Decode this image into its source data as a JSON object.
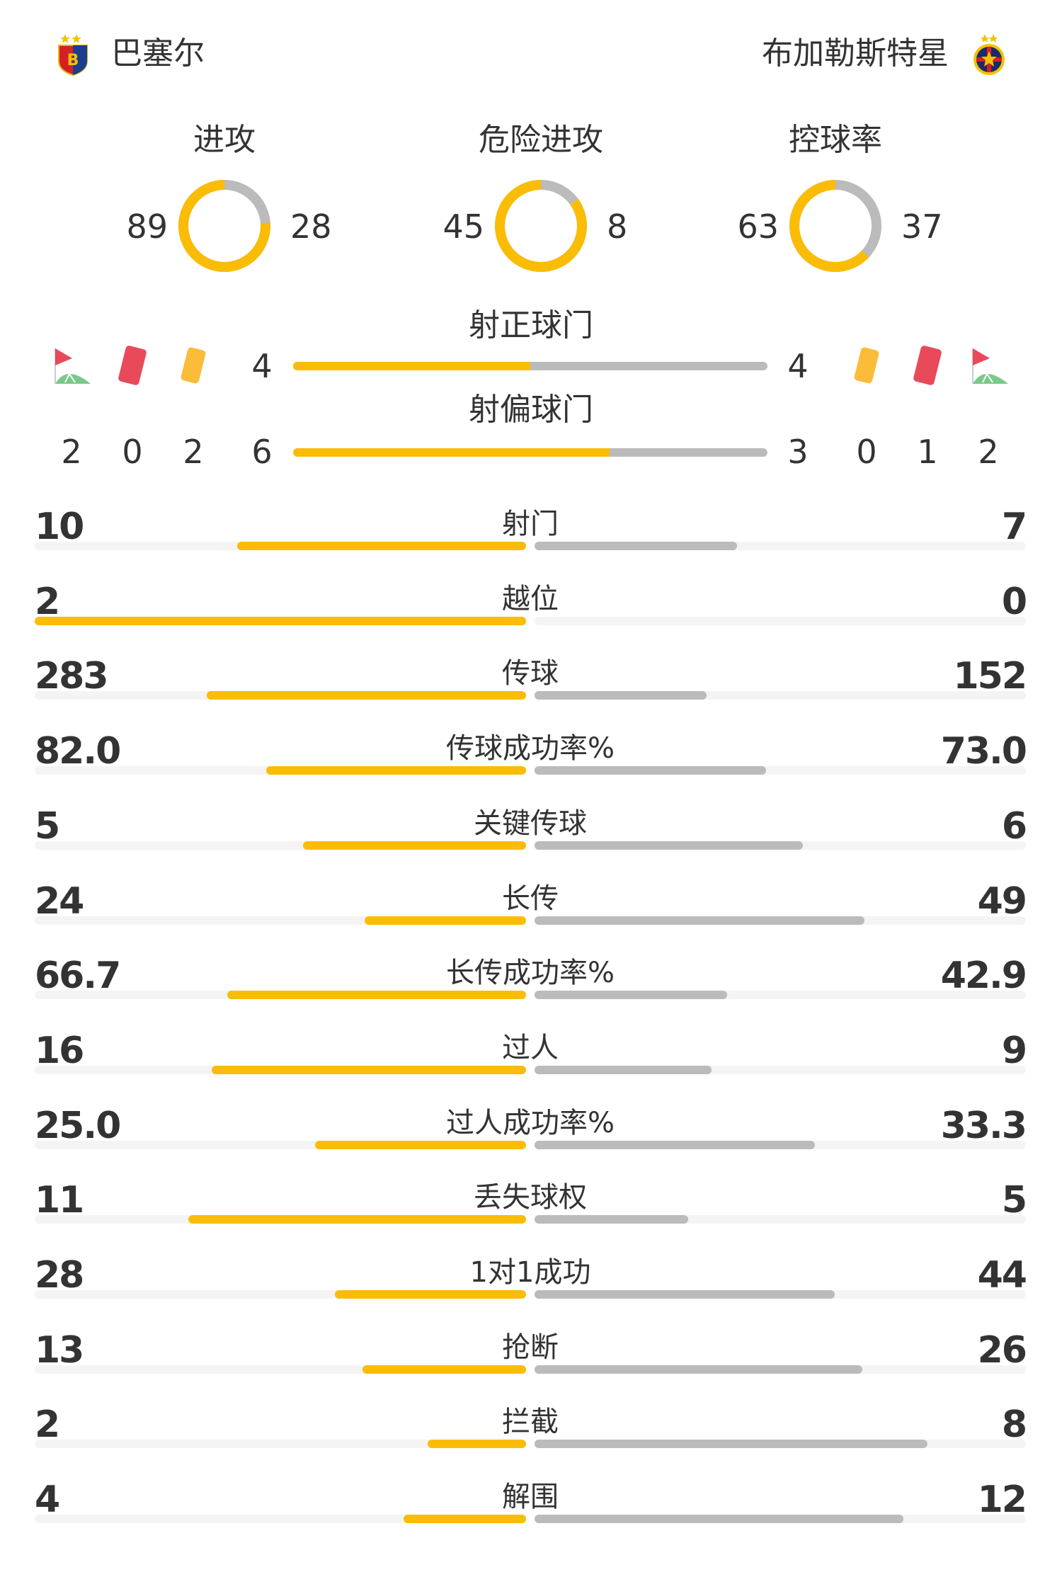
{
  "colors": {
    "home": "#fbbc05",
    "away": "#bbbbbb",
    "track": "#f4f4f4",
    "text": "#333333"
  },
  "header": {
    "home": {
      "name": "巴塞尔",
      "logo": "fc-basel-crest"
    },
    "away": {
      "name": "布加勒斯特星",
      "logo": "fcsb-crest"
    }
  },
  "donuts": [
    {
      "label": "进攻",
      "home": 89,
      "away": 28
    },
    {
      "label": "危险进攻",
      "home": 45,
      "away": 8
    },
    {
      "label": "控球率",
      "home": 63,
      "away": 37
    }
  ],
  "shots": {
    "on_target": {
      "label": "射正球门",
      "home": 4,
      "away": 4
    },
    "off_target": {
      "label": "射偏球门",
      "home": 6,
      "away": 3
    }
  },
  "cards": {
    "home": {
      "corners": 2,
      "red": 0,
      "yellow": 2
    },
    "away": {
      "yellow": 0,
      "red": 1,
      "corners": 2
    }
  },
  "stats": [
    {
      "label": "射门",
      "home": "10",
      "away": "7"
    },
    {
      "label": "越位",
      "home": "2",
      "away": "0"
    },
    {
      "label": "传球",
      "home": "283",
      "away": "152"
    },
    {
      "label": "传球成功率%",
      "home": "82.0",
      "away": "73.0"
    },
    {
      "label": "关键传球",
      "home": "5",
      "away": "6"
    },
    {
      "label": "长传",
      "home": "24",
      "away": "49"
    },
    {
      "label": "长传成功率%",
      "home": "66.7",
      "away": "42.9"
    },
    {
      "label": "过人",
      "home": "16",
      "away": "9"
    },
    {
      "label": "过人成功率%",
      "home": "25.0",
      "away": "33.3"
    },
    {
      "label": "丢失球权",
      "home": "11",
      "away": "5"
    },
    {
      "label": "1对1成功",
      "home": "28",
      "away": "44"
    },
    {
      "label": "抢断",
      "home": "13",
      "away": "26"
    },
    {
      "label": "拦截",
      "home": "2",
      "away": "8"
    },
    {
      "label": "解围",
      "home": "4",
      "away": "12"
    }
  ]
}
